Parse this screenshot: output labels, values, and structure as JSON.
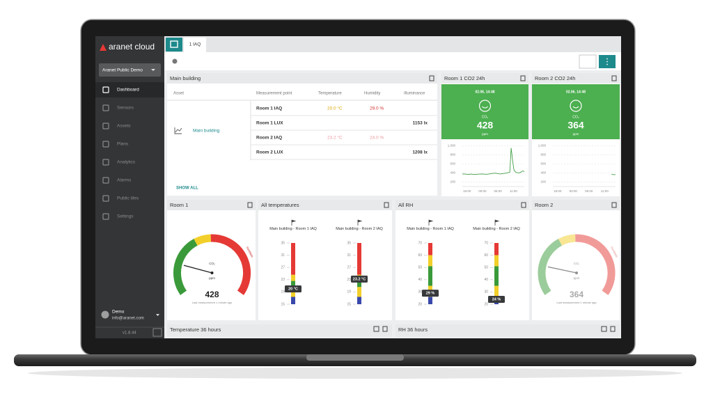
{
  "sidebar": {
    "logo": "aranet cloud",
    "workspace": "Aranet Public Demo",
    "menu": [
      "Dashboard",
      "Sensors",
      "Assets",
      "Plans",
      "Analytics",
      "Alarms",
      "Public tiles",
      "Settings"
    ],
    "user": "Demo",
    "email": "info@aranet.com",
    "version": "v1.8.44"
  },
  "tabs": [
    "1 IAQ"
  ],
  "table_tile": {
    "title": "Main building",
    "headers": [
      "Asset",
      "Measurement point",
      "Temperature",
      "Humidity",
      "Illuminance"
    ],
    "asset": "Main building",
    "rows": [
      {
        "point": "Room 1 IAQ",
        "temperature": "20.0 °C",
        "humidity": "29.0 %"
      },
      {
        "point": "Room 1 LUX",
        "illuminance": "1153 lx"
      },
      {
        "point": "Room 2 IAQ",
        "temperature": "23.2 °C",
        "humidity": "24.0 %"
      },
      {
        "point": "Room 2 LUX",
        "illuminance": "1208 lx"
      }
    ],
    "show_all": "SHOW ALL"
  },
  "co2_tiles": [
    {
      "title": "Room 1 CO2 24h",
      "time": "02.06, 14:48",
      "measure": "CO₂",
      "value": "428",
      "unit": "ppm",
      "ylim": [
        100,
        1050
      ],
      "yticks": [
        {
          "value": 1000,
          "label": "1,000"
        },
        800,
        600,
        400,
        200
      ],
      "xlabels": [
        "18:00",
        "00:00",
        "06:00",
        "11:00"
      ],
      "values": [
        380,
        375,
        378,
        372,
        370,
        368,
        372,
        375,
        370,
        365,
        368,
        370,
        372,
        375,
        378,
        376,
        374,
        372,
        370,
        372,
        375,
        380,
        385,
        390,
        392,
        395,
        390,
        385,
        380,
        378,
        382,
        386,
        390,
        395,
        400,
        410,
        420,
        950,
        700,
        480,
        430,
        410,
        405,
        400,
        410,
        430,
        445,
        428
      ]
    },
    {
      "title": "Room 2 CO2 24h",
      "time": "02.06, 14:48",
      "measure": "CO₂",
      "value": "364",
      "unit": "ppm",
      "ylim": [
        100,
        1050
      ],
      "yticks": [
        {
          "value": 1000,
          "label": "1,000"
        },
        800,
        600,
        400,
        200
      ],
      "xlabels": [
        "18:00",
        "00:00",
        "06:00",
        "11:00"
      ],
      "values": [
        null,
        null,
        null,
        null,
        null,
        null,
        null,
        null,
        null,
        null,
        null,
        null,
        null,
        null,
        null,
        null,
        null,
        null,
        null,
        null,
        null,
        null,
        null,
        null,
        null,
        null,
        null,
        null,
        null,
        null,
        null,
        null,
        null,
        null,
        null,
        null,
        null,
        null,
        null,
        null,
        null,
        null,
        null,
        null,
        370,
        365,
        362,
        364
      ]
    }
  ],
  "gauges": [
    {
      "title": "Room 1",
      "measure": "CO₂",
      "unit": "ppm",
      "value": "428",
      "note": "Last measurement 1 minute ago",
      "zone": "Ventilate"
    },
    {
      "title": "Room 2",
      "measure": "CO₂",
      "unit": "ppm",
      "value": "364",
      "note": "Last measurement 1 minute ago",
      "zone": "Ventilate"
    }
  ],
  "scales": [
    {
      "title": "All temperatures",
      "ticks": [
        35,
        31,
        27,
        23,
        19,
        15
      ],
      "sensors": [
        {
          "name": "Main building - Room 1 IAQ",
          "value": 20,
          "value_label": "20 °C"
        },
        {
          "name": "Main building - Room 2 IAQ",
          "value": 23.2,
          "value_label": "23.2 °C"
        }
      ]
    },
    {
      "title": "All RH",
      "ticks": [
        70,
        60,
        50,
        40,
        30,
        20
      ],
      "sensors": [
        {
          "name": "Main building - Room 1 IAQ",
          "value": 29,
          "value_label": "29 %"
        },
        {
          "name": "Main building - Room 2 IAQ",
          "value": 24,
          "value_label": "24 %"
        }
      ]
    }
  ],
  "bottom_tiles": [
    "Temperature 36 hours",
    "RH 36 hours"
  ]
}
